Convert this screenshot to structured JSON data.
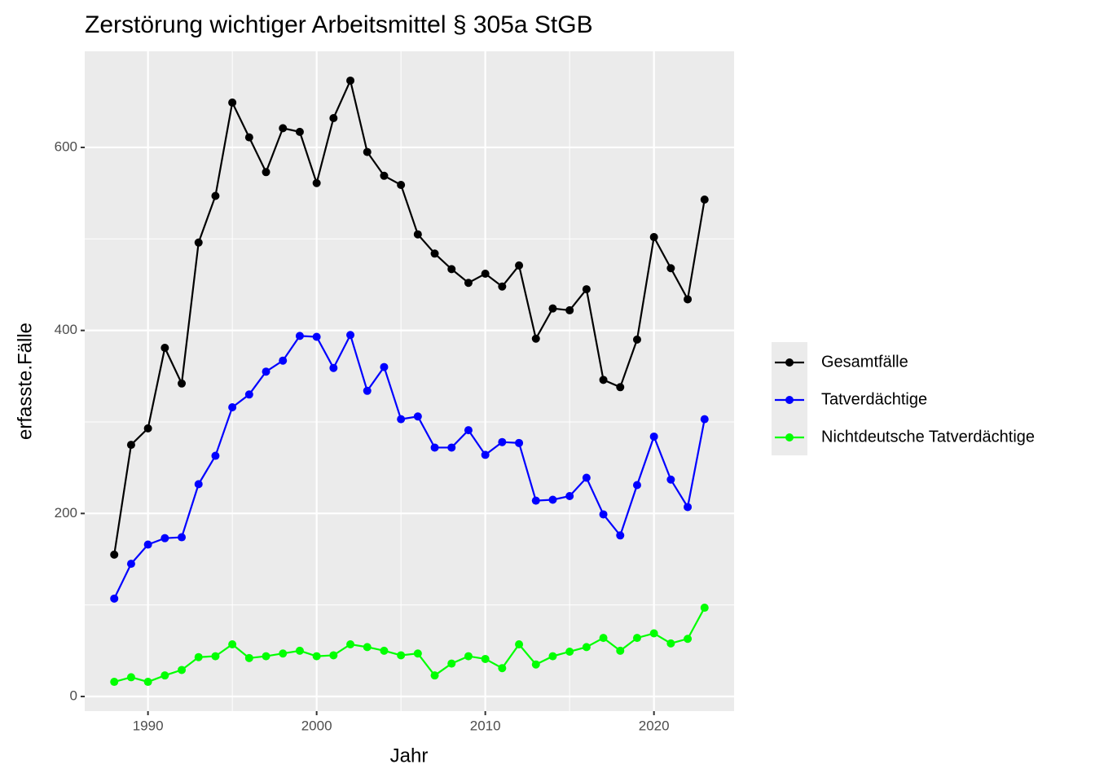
{
  "chart_data": {
    "type": "line",
    "title": "Zerstörung wichtiger Arbeitsmittel § 305a StGB",
    "xlabel": "Jahr",
    "ylabel": "erfasste.Fälle",
    "x": [
      1988,
      1989,
      1990,
      1991,
      1992,
      1993,
      1994,
      1995,
      1996,
      1997,
      1998,
      1999,
      2000,
      2001,
      2002,
      2003,
      2004,
      2005,
      2006,
      2007,
      2008,
      2009,
      2010,
      2011,
      2012,
      2013,
      2014,
      2015,
      2016,
      2017,
      2018,
      2019,
      2020,
      2021,
      2022,
      2023
    ],
    "series": [
      {
        "name": "Gesamtfälle",
        "color": "#000000",
        "values": [
          155,
          275,
          293,
          381,
          342,
          496,
          547,
          649,
          611,
          573,
          621,
          617,
          561,
          632,
          673,
          595,
          569,
          559,
          505,
          484,
          467,
          452,
          462,
          448,
          471,
          391,
          424,
          422,
          445,
          346,
          338,
          390,
          502,
          468,
          434,
          543
        ]
      },
      {
        "name": "Tatverdächtige",
        "color": "#0000ff",
        "values": [
          107,
          145,
          166,
          173,
          174,
          232,
          263,
          316,
          330,
          355,
          367,
          394,
          393,
          359,
          395,
          334,
          360,
          303,
          306,
          272,
          272,
          291,
          264,
          278,
          277,
          214,
          215,
          219,
          239,
          199,
          176,
          231,
          284,
          237,
          207,
          303
        ]
      },
      {
        "name": "Nichtdeutsche Tatverdächtige",
        "color": "#00ff00",
        "values": [
          16,
          21,
          16,
          23,
          29,
          43,
          44,
          57,
          42,
          44,
          47,
          50,
          44,
          45,
          57,
          54,
          50,
          45,
          47,
          23,
          36,
          44,
          41,
          31,
          57,
          35,
          44,
          49,
          54,
          64,
          50,
          64,
          69,
          58,
          63,
          97
        ]
      }
    ],
    "xlim": [
      1986.25,
      2024.75
    ],
    "xticks": [
      1990,
      2000,
      2010,
      2020
    ],
    "xminor": [
      1995,
      2005,
      2015
    ],
    "ylim": [
      -16,
      705
    ],
    "yticks": [
      0,
      200,
      400,
      600
    ],
    "yminor": [
      100,
      300,
      500
    ],
    "grid": true,
    "legend": "right"
  }
}
